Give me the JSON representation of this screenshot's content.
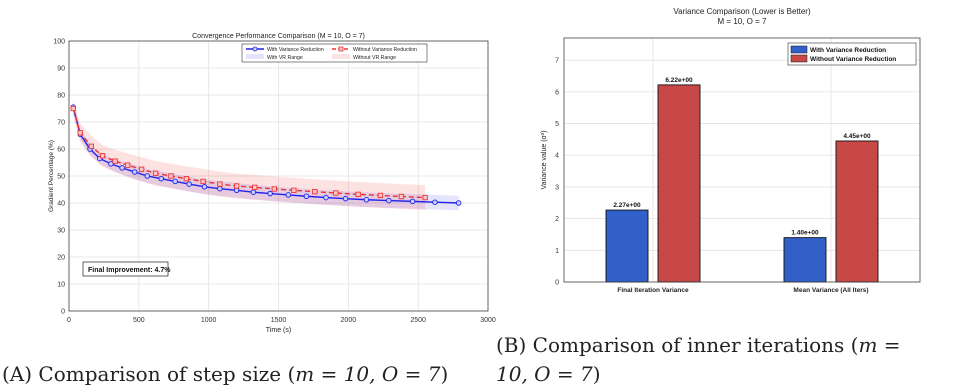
{
  "chart_data": [
    {
      "type": "line",
      "title": "Convergence Performance Comparison (M = 10, O = 7)",
      "xlabel": "Time (s)",
      "ylabel": "Gradient Percentage (%)",
      "xlim": [
        0,
        3000
      ],
      "ylim": [
        0,
        100
      ],
      "xticks": [
        0,
        500,
        1000,
        1500,
        2000,
        2500,
        3000
      ],
      "yticks": [
        0,
        10,
        20,
        30,
        40,
        50,
        60,
        70,
        80,
        90,
        100
      ],
      "grid": true,
      "legend_position": "top-right",
      "legend": [
        "With Variance Reduction",
        "Without Variance Reduction",
        "With VR Range",
        "Without VR Range"
      ],
      "annotation": "Final Improvement: 4.7%",
      "series": [
        {
          "name": "With Variance Reduction",
          "color": "#2222ee",
          "x": [
            30,
            80,
            150,
            220,
            300,
            380,
            470,
            560,
            660,
            760,
            860,
            970,
            1080,
            1200,
            1320,
            1440,
            1570,
            1700,
            1840,
            1980,
            2130,
            2290,
            2460,
            2620,
            2790
          ],
          "y": [
            75.5,
            65.5,
            60.0,
            56.5,
            54.5,
            53.0,
            51.5,
            50.0,
            49.0,
            48.0,
            47.0,
            46.0,
            45.3,
            44.7,
            44.0,
            43.5,
            43.0,
            42.5,
            42.0,
            41.6,
            41.2,
            40.9,
            40.6,
            40.3,
            40.0
          ],
          "range_lower": [
            74.0,
            63.5,
            58.0,
            54.5,
            52.3,
            50.6,
            48.9,
            47.4,
            46.3,
            45.3,
            44.3,
            43.3,
            42.6,
            42.0,
            41.3,
            40.8,
            40.3,
            39.8,
            39.3,
            38.9,
            38.5,
            38.2,
            37.9,
            37.6,
            37.3
          ],
          "range_upper": [
            77.0,
            67.5,
            62.0,
            58.5,
            56.7,
            55.4,
            54.1,
            52.6,
            51.7,
            50.7,
            49.7,
            48.7,
            48.0,
            47.4,
            46.7,
            46.2,
            45.7,
            45.2,
            44.7,
            44.3,
            43.9,
            43.6,
            43.3,
            43.0,
            42.7
          ]
        },
        {
          "name": "Without Variance Reduction",
          "color": "#ee3333",
          "x": [
            30,
            80,
            160,
            240,
            330,
            420,
            520,
            620,
            730,
            840,
            960,
            1080,
            1200,
            1330,
            1470,
            1610,
            1760,
            1910,
            2070,
            2230,
            2380,
            2550
          ],
          "y": [
            75.0,
            66.0,
            61.0,
            57.5,
            55.5,
            54.0,
            52.5,
            51.0,
            50.0,
            49.0,
            48.0,
            47.0,
            46.3,
            45.8,
            45.2,
            44.7,
            44.2,
            43.7,
            43.2,
            42.8,
            42.4,
            42.0
          ],
          "range_lower": [
            72.0,
            62.5,
            57.0,
            53.5,
            51.3,
            49.6,
            48.0,
            46.5,
            45.4,
            44.4,
            43.4,
            42.4,
            41.7,
            41.2,
            40.6,
            40.1,
            39.6,
            39.1,
            38.6,
            38.2,
            37.8,
            37.4
          ],
          "range_upper": [
            78.0,
            69.5,
            65.0,
            61.5,
            59.7,
            58.4,
            57.0,
            55.5,
            54.6,
            53.6,
            52.6,
            51.6,
            50.9,
            50.4,
            49.8,
            49.3,
            48.8,
            48.3,
            47.8,
            47.4,
            47.0,
            46.6
          ]
        }
      ],
      "caption_label": "(A)",
      "caption_text": "Comparison of step size (",
      "caption_math": "m = 10, O = 7",
      "caption_close": ")"
    },
    {
      "type": "bar",
      "title": "Variance Comparison (Lower is Better)",
      "subtitle": "M = 10, O = 7",
      "xlabel": "",
      "ylabel": "Variance value (σ²)",
      "ylim": [
        0,
        7.7
      ],
      "yticks": [
        0,
        1,
        2,
        3,
        4,
        5,
        6,
        7
      ],
      "grid": true,
      "legend_position": "top-right",
      "categories": [
        "Final Iteration Variance",
        "Mean Variance (All Iters)"
      ],
      "series": [
        {
          "name": "With Variance Reduction",
          "color": "#3060c8",
          "values": [
            2.27,
            1.4
          ],
          "labels": [
            "2.27e+00",
            "1.40e+00"
          ]
        },
        {
          "name": "Without Variance Reduction",
          "color": "#c84848",
          "values": [
            6.22,
            4.45
          ],
          "labels": [
            "6.22e+00",
            "4.45e+00"
          ]
        }
      ],
      "caption_label": "(B)",
      "caption_text": "Comparison of inner iterations (",
      "caption_math_1": "m =",
      "caption_math_2": "10, O = 7",
      "caption_close": ")"
    }
  ]
}
